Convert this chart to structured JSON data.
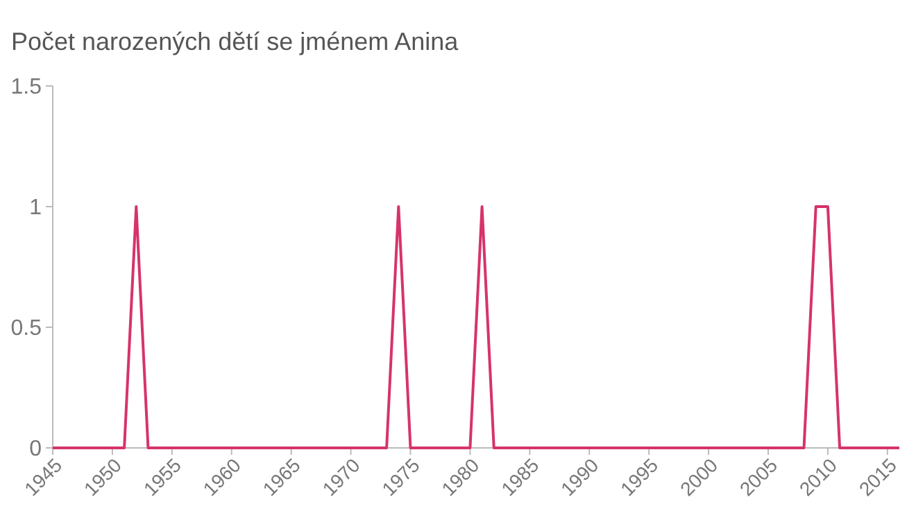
{
  "chart_data": {
    "type": "line",
    "title": "Počet narozených dětí se jménem Anina",
    "x": [
      1945,
      1951,
      1952,
      1953,
      1973,
      1974,
      1975,
      1980,
      1981,
      1982,
      2008,
      2009,
      2010,
      2011,
      2016
    ],
    "series": [
      {
        "color": "#d6336c",
        "values": [
          0,
          0,
          1,
          0,
          0,
          1,
          0,
          0,
          1,
          0,
          0,
          1,
          1,
          0,
          0
        ]
      }
    ],
    "xlim": [
      1945,
      2016
    ],
    "xticks": [
      1945,
      1950,
      1955,
      1960,
      1965,
      1970,
      1975,
      1980,
      1985,
      1990,
      1995,
      2000,
      2005,
      2010,
      2015
    ],
    "ylim": [
      0,
      1.5
    ],
    "yticks": [
      0,
      0.5,
      1,
      1.5
    ],
    "grid": false,
    "marker": "none",
    "line_style": "solid"
  }
}
